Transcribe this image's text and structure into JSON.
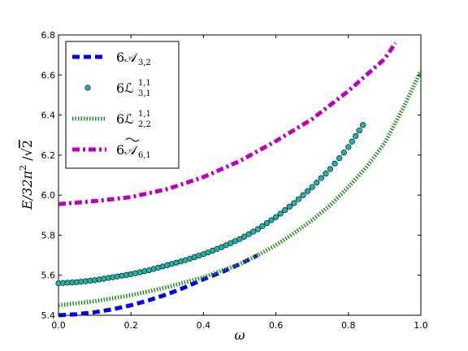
{
  "chart_data": {
    "type": "line",
    "xlabel": "ω",
    "ylabel_parts": {
      "main": "E/32π",
      "sup": "2",
      "sep": " /",
      "root": "√",
      "rad": "2"
    },
    "xlim": [
      0.0,
      1.0
    ],
    "ylim": [
      5.4,
      6.8
    ],
    "xticks": [
      "0.0",
      "0.2",
      "0.4",
      "0.6",
      "0.8",
      "1.0"
    ],
    "yticks": [
      "5.4",
      "5.6",
      "5.8",
      "6.0",
      "6.2",
      "6.4",
      "6.6",
      "6.8"
    ],
    "grid": false,
    "legend_position": "top-left",
    "series": [
      {
        "name": "6𝒜",
        "sub": "3,2",
        "sup": "",
        "tilde": false,
        "color": "#0000ee",
        "style": "dashed",
        "x": [
          0.0,
          0.05,
          0.1,
          0.15,
          0.2,
          0.25,
          0.3,
          0.35,
          0.4,
          0.45,
          0.5,
          0.55
        ],
        "y": [
          5.4,
          5.405,
          5.415,
          5.43,
          5.45,
          5.475,
          5.505,
          5.54,
          5.58,
          5.615,
          5.655,
          5.7
        ]
      },
      {
        "name": "6ℒ",
        "sub": "3,1",
        "sup": "1,1",
        "tilde": false,
        "color": "#20b2aa",
        "style": "markers",
        "x": [
          0.0,
          0.05,
          0.1,
          0.15,
          0.2,
          0.25,
          0.3,
          0.35,
          0.4,
          0.45,
          0.5,
          0.55,
          0.6,
          0.65,
          0.7,
          0.75,
          0.8,
          0.84
        ],
        "y": [
          5.56,
          5.565,
          5.575,
          5.59,
          5.605,
          5.625,
          5.65,
          5.675,
          5.705,
          5.74,
          5.78,
          5.83,
          5.89,
          5.96,
          6.04,
          6.13,
          6.24,
          6.35
        ]
      },
      {
        "name": "6ℒ",
        "sub": "2,2",
        "sup": "1,1",
        "tilde": false,
        "color": "#228b22",
        "style": "dotted",
        "x": [
          0.0,
          0.1,
          0.2,
          0.3,
          0.4,
          0.5,
          0.55,
          0.6,
          0.65,
          0.7,
          0.75,
          0.8,
          0.85,
          0.9,
          0.95,
          1.0
        ],
        "y": [
          5.45,
          5.47,
          5.5,
          5.54,
          5.59,
          5.655,
          5.7,
          5.75,
          5.81,
          5.875,
          5.95,
          6.04,
          6.14,
          6.26,
          6.43,
          6.62
        ]
      },
      {
        "name": "6𝒜",
        "sub": "6,1",
        "sup": "",
        "tilde": true,
        "color": "#bb00bb",
        "style": "dashdot",
        "x": [
          0.0,
          0.1,
          0.2,
          0.3,
          0.4,
          0.5,
          0.6,
          0.7,
          0.8,
          0.85,
          0.9,
          0.93
        ],
        "y": [
          5.955,
          5.97,
          5.99,
          6.03,
          6.09,
          6.17,
          6.27,
          6.38,
          6.52,
          6.6,
          6.68,
          6.76
        ]
      }
    ]
  }
}
